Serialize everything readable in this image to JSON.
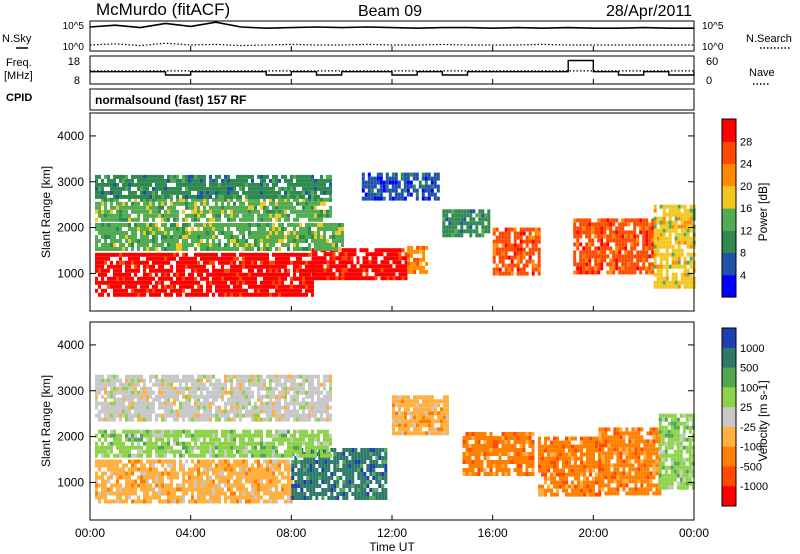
{
  "header": {
    "station": "McMurdo (fitACF)",
    "beam": "Beam 09",
    "date": "28/Apr/2011"
  },
  "chart_data": [
    {
      "type": "line",
      "panel": "noise",
      "left_label_top": "N.Sky",
      "right_label_top": "N.Search",
      "left_ticks": [
        "10^5",
        "10^0"
      ],
      "right_ticks": [
        "10^5",
        "10^0"
      ],
      "x_hours": [
        0,
        1,
        2,
        3,
        4,
        5,
        6,
        7,
        8,
        9,
        10,
        11,
        12,
        13,
        14,
        15,
        16,
        17,
        18,
        19,
        20,
        21,
        22,
        23,
        24
      ],
      "series": [
        {
          "values": [
            4.0,
            4.3,
            3.9,
            4.6,
            4.1,
            4.8,
            4.0,
            3.8,
            3.9,
            4.0,
            3.9,
            4.0,
            3.9,
            3.8,
            3.9,
            3.9,
            3.8,
            3.9,
            3.8,
            3.9,
            3.8,
            3.8,
            3.9,
            3.8,
            3.8
          ]
        },
        {
          "values": [
            1.0,
            1.2,
            0.9,
            1.3,
            1.0,
            1.1,
            0.9,
            1.0,
            1.1,
            1.0,
            1.0,
            1.1,
            1.0,
            1.0,
            1.1,
            1.0,
            1.0,
            1.0,
            1.1,
            1.0,
            1.0,
            1.0,
            1.0,
            1.0,
            1.0
          ]
        }
      ]
    },
    {
      "type": "line",
      "panel": "frequency",
      "left_label_top": "Freq.",
      "left_label_bottom": "[MHz]",
      "right_label": "Nave",
      "left_ticks": [
        "18",
        "8"
      ],
      "right_ticks": [
        "60",
        "0"
      ],
      "x_hours": [
        0,
        1,
        2,
        3,
        4,
        5,
        6,
        7,
        8,
        9,
        10,
        11,
        12,
        13,
        14,
        15,
        16,
        17,
        18,
        19,
        20,
        21,
        22,
        23,
        24
      ],
      "series": [
        {
          "values": [
            12.4,
            12.4,
            12.4,
            11.2,
            12.4,
            12.4,
            12.4,
            11.2,
            12.4,
            11.2,
            12.4,
            12.4,
            11.2,
            12.4,
            11.2,
            12.4,
            12.4,
            12.4,
            12.4,
            16.4,
            12.4,
            11.2,
            12.4,
            11.2,
            12.4
          ]
        },
        {
          "values": [
            28,
            28,
            28,
            28,
            28,
            28,
            28,
            28,
            28,
            28,
            28,
            28,
            28,
            28,
            28,
            28,
            28,
            28,
            28,
            28,
            28,
            28,
            28,
            28,
            28
          ]
        }
      ]
    },
    {
      "type": "heatmap",
      "panel": "power",
      "title": "normalsound (fast) 157 RF",
      "cpid_label": "CPID",
      "ylabel": "Slant Range [km]",
      "ylim": [
        180,
        4500
      ],
      "yticks": [
        1000,
        2000,
        3000,
        4000
      ],
      "colorbar_label": "Power [dB]",
      "colorbar_ticks": [
        "4",
        "8",
        "12",
        "16",
        "20",
        "24",
        "28"
      ],
      "colorbar_colors": [
        "#0000ff",
        "#1f52a8",
        "#2f8a50",
        "#52ad52",
        "#f2c820",
        "#ff8c00",
        "#ff4a00",
        "#ff0000"
      ],
      "bands": [
        {
          "x": [
            0.2,
            8.8
          ],
          "y": [
            550,
            1450
          ],
          "level": 7
        },
        {
          "x": [
            8.8,
            12.6
          ],
          "y": [
            900,
            1550
          ],
          "level": 7
        },
        {
          "x": [
            12.6,
            13.4
          ],
          "y": [
            1000,
            1600
          ],
          "level": 5
        },
        {
          "x": [
            0.2,
            10.0
          ],
          "y": [
            1500,
            2100
          ],
          "level": 3
        },
        {
          "x": [
            0.2,
            9.5
          ],
          "y": [
            2200,
            2650
          ],
          "level": 3
        },
        {
          "x": [
            0.2,
            9.5
          ],
          "y": [
            2700,
            3150
          ],
          "level": 2
        },
        {
          "x": [
            10.8,
            13.8
          ],
          "y": [
            2600,
            3200
          ],
          "level": 1
        },
        {
          "x": [
            14.0,
            15.8
          ],
          "y": [
            1800,
            2400
          ],
          "level": 2
        },
        {
          "x": [
            16.0,
            17.8
          ],
          "y": [
            1000,
            2000
          ],
          "level": 6
        },
        {
          "x": [
            19.2,
            22.4
          ],
          "y": [
            1000,
            2200
          ],
          "level": 6
        },
        {
          "x": [
            22.4,
            24.0
          ],
          "y": [
            700,
            2500
          ],
          "level": 4
        }
      ]
    },
    {
      "type": "heatmap",
      "panel": "velocity",
      "ylabel": "Slant Range [km]",
      "xlabel": "Time UT",
      "ylim": [
        180,
        4500
      ],
      "yticks": [
        1000,
        2000,
        3000,
        4000
      ],
      "xticks": [
        "00:00",
        "04:00",
        "08:00",
        "12:00",
        "16:00",
        "20:00",
        "00:00"
      ],
      "colorbar_label": "Velocity [m s-1]",
      "colorbar_ticks": [
        "1000",
        "500",
        "100",
        "25",
        "-25",
        "-100",
        "-500",
        "-1000"
      ],
      "colorbar_colors": [
        "#1f3fb0",
        "#2e7a6a",
        "#52a852",
        "#8cd34a",
        "#c8c8c8",
        "#ffb040",
        "#ff8000",
        "#ff4a00",
        "#ff0000"
      ],
      "bands": [
        {
          "x": [
            0.2,
            8.0
          ],
          "y": [
            600,
            1500
          ],
          "level": 5
        },
        {
          "x": [
            8.0,
            11.8
          ],
          "y": [
            700,
            1750
          ],
          "level": 1
        },
        {
          "x": [
            0.2,
            9.5
          ],
          "y": [
            1550,
            2150
          ],
          "level": 3
        },
        {
          "x": [
            0.2,
            9.5
          ],
          "y": [
            2350,
            2850
          ],
          "level": 4
        },
        {
          "x": [
            0.2,
            9.5
          ],
          "y": [
            2900,
            3350
          ],
          "level": 4
        },
        {
          "x": [
            12.0,
            14.2
          ],
          "y": [
            2100,
            2900
          ],
          "level": 5
        },
        {
          "x": [
            14.8,
            17.6
          ],
          "y": [
            1200,
            2100
          ],
          "level": 6
        },
        {
          "x": [
            17.8,
            20.2
          ],
          "y": [
            700,
            2000
          ],
          "level": 6
        },
        {
          "x": [
            20.2,
            22.6
          ],
          "y": [
            800,
            2200
          ],
          "level": 6
        },
        {
          "x": [
            22.6,
            24.0
          ],
          "y": [
            900,
            2500
          ],
          "level": 3
        }
      ]
    }
  ]
}
